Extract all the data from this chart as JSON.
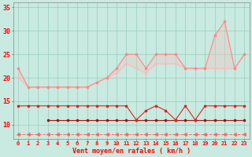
{
  "xlabel": "Vent moyen/en rafales ( km/h )",
  "background_color": "#c8eae0",
  "grid_color": "#99ccbb",
  "x": [
    0,
    1,
    2,
    3,
    4,
    5,
    6,
    7,
    8,
    9,
    10,
    11,
    12,
    13,
    14,
    15,
    16,
    17,
    18,
    19,
    20,
    21,
    22,
    23
  ],
  "line1": [
    22,
    18,
    18,
    18,
    18,
    18,
    18,
    18,
    19,
    20,
    22,
    25,
    25,
    22,
    25,
    25,
    25,
    22,
    22,
    22,
    29,
    32,
    22,
    25
  ],
  "line2": [
    20,
    18,
    18,
    18,
    18,
    18,
    18,
    18,
    19,
    20,
    21,
    23,
    22,
    21,
    23,
    23,
    23,
    22,
    22,
    22,
    22,
    22,
    22,
    25
  ],
  "line3": [
    14,
    14,
    14,
    14,
    14,
    14,
    14,
    14,
    14,
    14,
    14,
    14,
    11,
    13,
    14,
    13,
    11,
    14,
    11,
    14,
    14,
    14,
    14,
    14
  ],
  "line4": [
    null,
    null,
    null,
    11,
    11,
    11,
    11,
    11,
    11,
    11,
    11,
    11,
    11,
    11,
    11,
    11,
    11,
    11,
    11,
    11,
    11,
    11,
    11,
    11
  ],
  "line5": [
    8,
    8,
    8,
    8,
    8,
    8,
    8,
    8,
    8,
    8,
    8,
    8,
    8,
    8,
    8,
    8,
    8,
    8,
    8,
    8,
    8,
    8,
    8,
    8
  ],
  "line1_color": "#ff8888",
  "line2_color": "#ffbbbb",
  "line3_color": "#dd2222",
  "line4_color": "#aa1111",
  "line5_color": "#ff6666",
  "ylim": [
    7,
    36
  ],
  "yticks": [
    10,
    15,
    20,
    25,
    30,
    35
  ],
  "xlim": [
    -0.5,
    23.5
  ]
}
